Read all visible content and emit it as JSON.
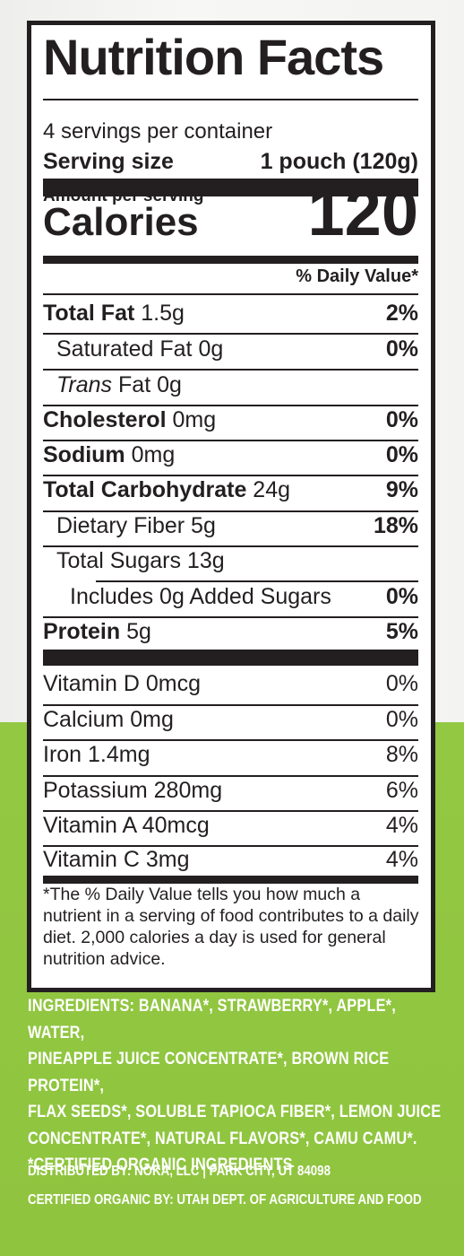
{
  "label": {
    "title": "Nutrition Facts",
    "servings_per_container": "4 servings per container",
    "serving_size_label": "Serving size",
    "serving_size_value": "1 pouch (120g)",
    "amount_per_serving": "Amount per serving",
    "calories_label": "Calories",
    "calories_value": "120",
    "daily_value_header": "% Daily Value*",
    "nutrients": [
      {
        "name": "Total Fat",
        "amount": "1.5g",
        "dv": "2%"
      },
      {
        "name": "Saturated Fat",
        "amount": "0g",
        "dv": "0%"
      },
      {
        "name": "Trans",
        "suffix": "Fat",
        "amount": "0g",
        "dv": ""
      },
      {
        "name": "Cholesterol",
        "amount": "0mg",
        "dv": "0%"
      },
      {
        "name": "Sodium",
        "amount": "0mg",
        "dv": "0%"
      },
      {
        "name": "Total Carbohydrate",
        "amount": "24g",
        "dv": "9%"
      },
      {
        "name": "Dietary Fiber",
        "amount": "5g",
        "dv": "18%"
      },
      {
        "name": "Total Sugars",
        "amount": "13g",
        "dv": ""
      },
      {
        "name": "Includes 0g Added Sugars",
        "amount": "",
        "dv": "0%"
      },
      {
        "name": "Protein",
        "amount": "5g",
        "dv": "5%"
      }
    ],
    "minerals": [
      {
        "text": "Vitamin D 0mcg",
        "dv": "0%"
      },
      {
        "text": "Calcium 0mg",
        "dv": "0%"
      },
      {
        "text": "Iron 1.4mg",
        "dv": "8%"
      },
      {
        "text": "Potassium 280mg",
        "dv": "6%"
      },
      {
        "text": "Vitamin A 40mcg",
        "dv": "4%"
      },
      {
        "text": "Vitamin C 3mg",
        "dv": "4%"
      }
    ],
    "footnote": "*The % Daily Value tells you how much a nutrient in a serving of food contributes to a daily diet. 2,000 calories a day is used for general nutrition advice."
  },
  "ingredients": {
    "line1": "INGREDIENTS: BANANA*, STRAWBERRY*, APPLE*, WATER,",
    "line2": "PINEAPPLE JUICE CONCENTRATE*, BROWN RICE PROTEIN*,",
    "line3": "FLAX SEEDS*, SOLUBLE TAPIOCA FIBER*, LEMON JUICE",
    "line4": "CONCENTRATE*, NATURAL FLAVORS*, CAMU CAMU*.",
    "line5": "*CERTIFIED ORGANIC INGREDIENTS"
  },
  "distribution": {
    "distributed_by": "DISTRIBUTED BY: NOKA, LLC | PARK CITY, UT 84098",
    "certified_by": "CERTIFIED ORGANIC BY: UTAH DEPT. OF AGRICULTURE AND FOOD"
  },
  "colors": {
    "label_ink": "#231f20",
    "package_green": "#8fc640",
    "background_white": "#f5f5f3"
  }
}
